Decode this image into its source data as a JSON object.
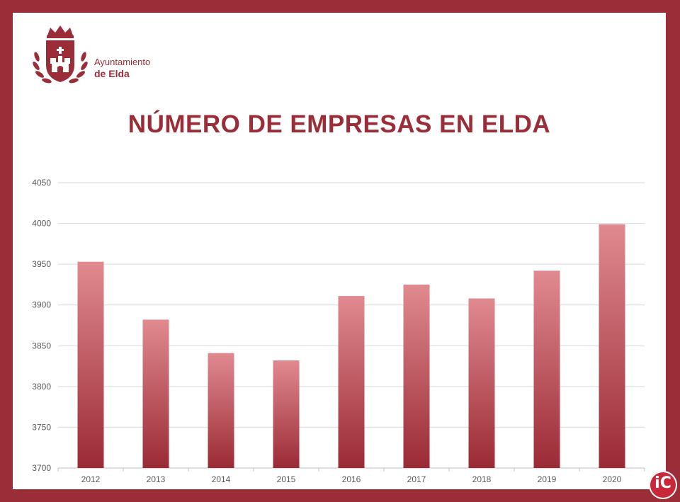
{
  "header": {
    "logo_line1": "Ayuntamiento",
    "logo_line2": "de Elda"
  },
  "colors": {
    "frame": "#9b2d38",
    "title": "#9b2d38",
    "bar_top": "#e08a90",
    "bar_bottom": "#9b2a35"
  },
  "icons": {
    "coat_of_arms": "coat-of-arms-icon",
    "corner_badge": "ic-badge-icon"
  },
  "corner_badge_text": "iC",
  "chart_data": {
    "type": "bar",
    "title": "NÚMERO DE EMPRESAS EN ELDA",
    "categories": [
      "2012",
      "2013",
      "2014",
      "2015",
      "2016",
      "2017",
      "2018",
      "2019",
      "2020"
    ],
    "values": [
      3953,
      3882,
      3841,
      3832,
      3911,
      3925,
      3908,
      3942,
      3999
    ],
    "ylim": [
      3700,
      4050
    ],
    "yticks": [
      3700,
      3750,
      3800,
      3850,
      3900,
      3950,
      4000,
      4050
    ],
    "grid": true,
    "legend": "none"
  }
}
